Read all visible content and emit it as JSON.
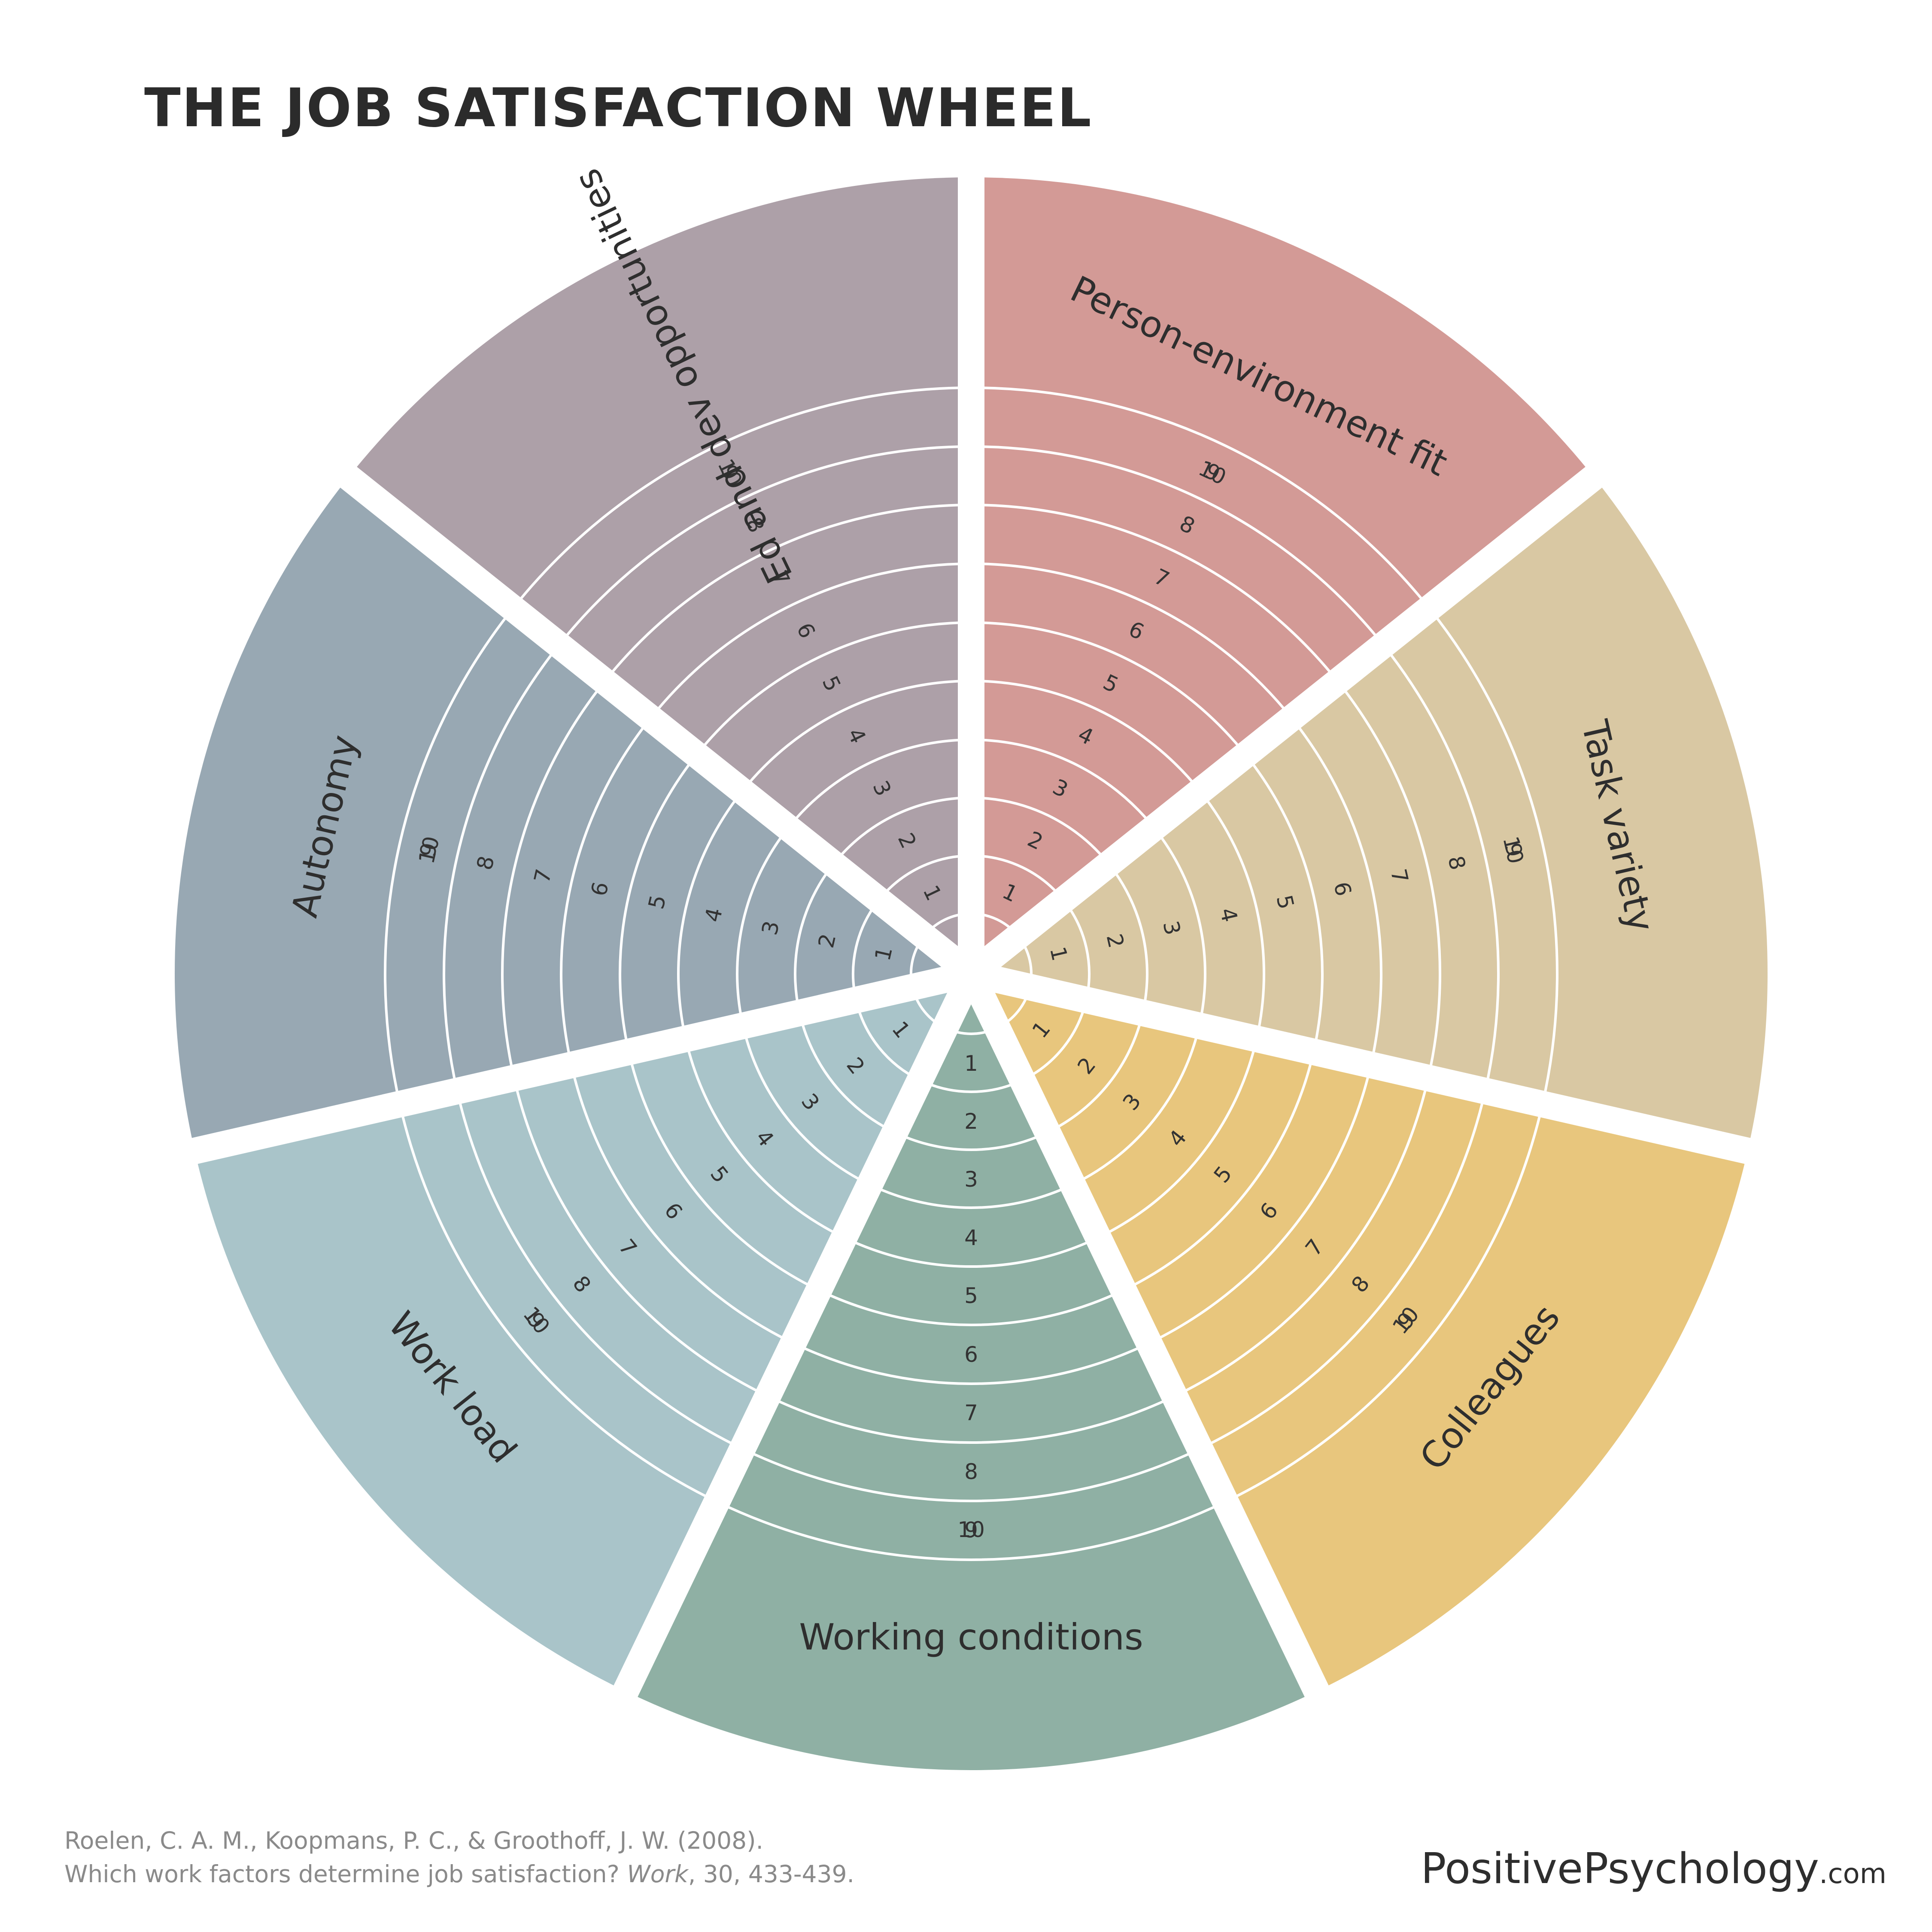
{
  "title": "THE JOB SATISFACTION WHEEL",
  "wheel": {
    "levels": [
      "1",
      "2",
      "3",
      "4",
      "5",
      "6",
      "7",
      "8",
      "9",
      "10"
    ],
    "segments": [
      {
        "label": "Person-environment fit",
        "color": "#D39A96"
      },
      {
        "label": "Task variety",
        "color": "#D9C8A3"
      },
      {
        "label": "Colleagues",
        "color": "#E8C67D"
      },
      {
        "label": "Working conditions",
        "color": "#8FB0A4"
      },
      {
        "label": "Work load",
        "color": "#A9C4C9"
      },
      {
        "label": "Autonomy",
        "color": "#98A8B3"
      },
      {
        "label": "Ed and dev opportunities",
        "color": "#ADA0A8"
      }
    ]
  },
  "citation": {
    "line1": "Roelen, C. A. M., Koopmans, P. C., & Groothoff, J. W. (2008).",
    "line2_before": "Which work factors determine job satisfaction? ",
    "line2_italic": "Work",
    "line2_after": ", 30, 433-439."
  },
  "brand": {
    "main": "PositivePsychology",
    "suffix": ".com"
  }
}
